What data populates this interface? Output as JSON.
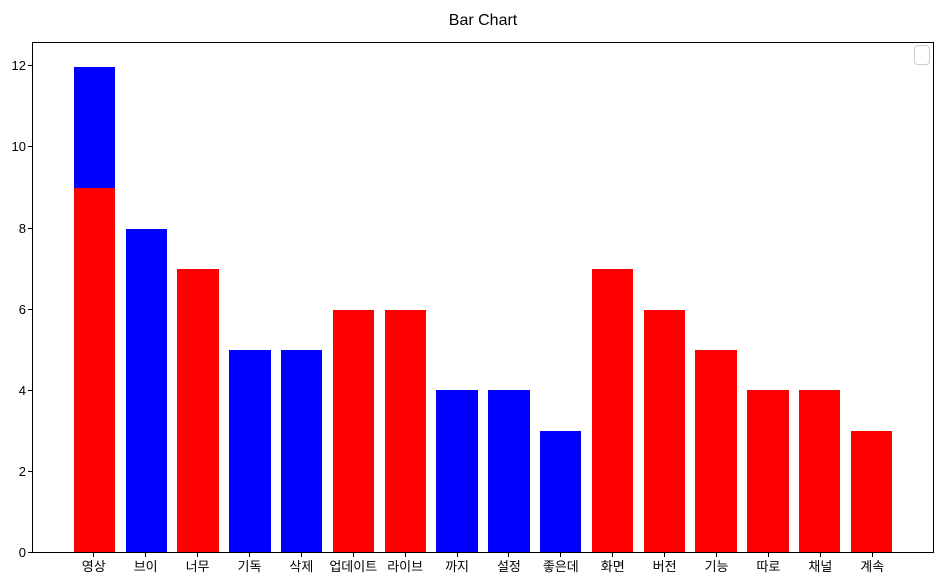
{
  "title": "Bar Chart",
  "chart_data": {
    "type": "bar",
    "title": "Bar Chart",
    "categories": [
      "영상",
      "브이",
      "너무",
      "기독",
      "삭제",
      "업데이트",
      "라이브",
      "까지",
      "설정",
      "좋은데",
      "화면",
      "버전",
      "기능",
      "따로",
      "채널",
      "계속"
    ],
    "values": [
      12,
      8,
      7,
      5,
      5,
      6,
      6,
      4,
      4,
      3,
      7,
      6,
      5,
      4,
      4,
      3
    ],
    "bars": [
      {
        "segments": [
          {
            "value": 9,
            "color": "#ff0000"
          },
          {
            "value": 3,
            "color": "#0000ff"
          }
        ]
      },
      {
        "segments": [
          {
            "value": 8,
            "color": "#0000ff"
          }
        ]
      },
      {
        "segments": [
          {
            "value": 7,
            "color": "#ff0000"
          }
        ]
      },
      {
        "segments": [
          {
            "value": 5,
            "color": "#0000ff"
          }
        ]
      },
      {
        "segments": [
          {
            "value": 5,
            "color": "#0000ff"
          }
        ]
      },
      {
        "segments": [
          {
            "value": 6,
            "color": "#ff0000"
          }
        ]
      },
      {
        "segments": [
          {
            "value": 6,
            "color": "#ff0000"
          }
        ]
      },
      {
        "segments": [
          {
            "value": 4,
            "color": "#0000ff"
          }
        ]
      },
      {
        "segments": [
          {
            "value": 4,
            "color": "#0000ff"
          }
        ]
      },
      {
        "segments": [
          {
            "value": 3,
            "color": "#0000ff"
          }
        ]
      },
      {
        "segments": [
          {
            "value": 7,
            "color": "#ff0000"
          }
        ]
      },
      {
        "segments": [
          {
            "value": 6,
            "color": "#ff0000"
          }
        ]
      },
      {
        "segments": [
          {
            "value": 5,
            "color": "#ff0000"
          }
        ]
      },
      {
        "segments": [
          {
            "value": 4,
            "color": "#ff0000"
          }
        ]
      },
      {
        "segments": [
          {
            "value": 4,
            "color": "#ff0000"
          }
        ]
      },
      {
        "segments": [
          {
            "value": 3,
            "color": "#ff0000"
          }
        ]
      }
    ],
    "y_ticks": [
      0,
      2,
      4,
      6,
      8,
      10,
      12
    ],
    "ylim": [
      0,
      12.6
    ],
    "xlabel": "",
    "ylabel": "",
    "grid": false,
    "legend": {
      "visible": true,
      "entries": [],
      "position": "upper right"
    },
    "colors": {
      "red": "#ff0000",
      "blue": "#0000ff",
      "axis": "#000000",
      "legend_border": "#cccccc",
      "background": "#ffffff"
    }
  }
}
